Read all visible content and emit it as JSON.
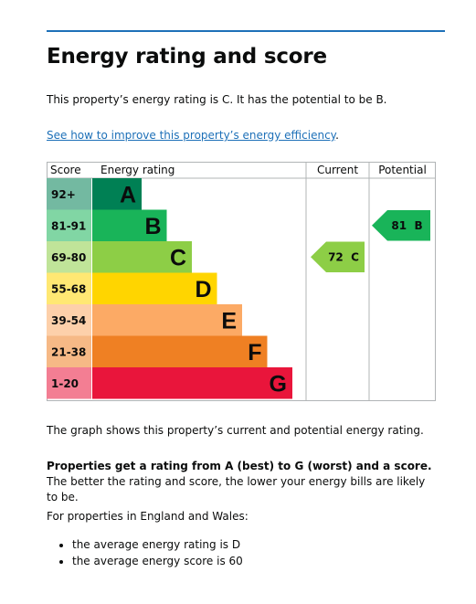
{
  "heading": "Energy rating and score",
  "intro": "This property’s energy rating is C. It has the potential to be B.",
  "improve_link": "See how to improve this property’s energy efficiency",
  "improve_link_suffix": ".",
  "chart_data": {
    "type": "table",
    "columns": [
      "Score",
      "Energy rating",
      "Current",
      "Potential"
    ],
    "bands": [
      {
        "range": "92+",
        "letter": "A",
        "color": "#008054"
      },
      {
        "range": "81-91",
        "letter": "B",
        "color": "#19b459"
      },
      {
        "range": "69-80",
        "letter": "C",
        "color": "#8dce46"
      },
      {
        "range": "55-68",
        "letter": "D",
        "color": "#ffd500"
      },
      {
        "range": "39-54",
        "letter": "E",
        "color": "#fcaa65"
      },
      {
        "range": "21-38",
        "letter": "F",
        "color": "#ef8023"
      },
      {
        "range": "1-20",
        "letter": "G",
        "color": "#e9153b"
      }
    ],
    "current": {
      "score": 72,
      "letter": "C",
      "label": "72  C",
      "color": "#8dce46"
    },
    "potential": {
      "score": 81,
      "letter": "B",
      "label": "81  B",
      "color": "#19b459"
    }
  },
  "graph_caption": "The graph shows this property’s current and potential energy rating.",
  "bold_text": "Properties get a rating from A (best) to G (worst) and a score.",
  "rest_text": " The better the rating and score, the lower your energy bills are likely to be.",
  "england_wales": "For properties in England and Wales:",
  "averages": [
    "the average energy rating is D",
    "the average energy score is 60"
  ]
}
